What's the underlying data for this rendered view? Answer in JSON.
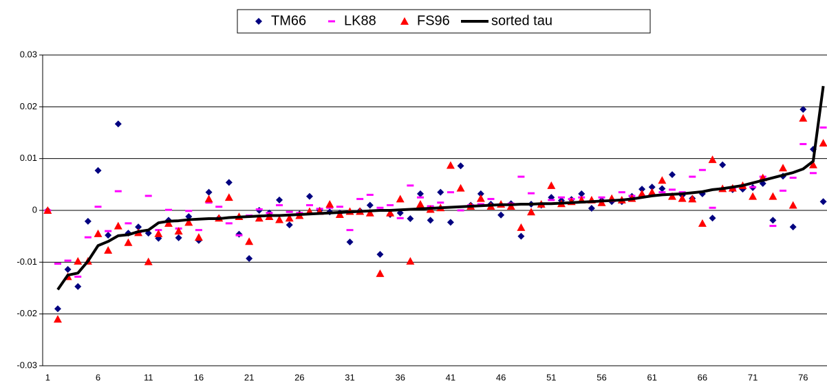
{
  "chart_data": {
    "type": "line",
    "categories": [
      "1",
      null,
      null,
      null,
      null,
      "6",
      null,
      null,
      null,
      null,
      "11",
      null,
      null,
      null,
      null,
      "16",
      null,
      null,
      null,
      null,
      "21",
      null,
      null,
      null,
      null,
      "26",
      null,
      null,
      null,
      null,
      "31",
      null,
      null,
      null,
      null,
      "36",
      null,
      null,
      null,
      null,
      "41",
      null,
      null,
      null,
      null,
      "46",
      null,
      null,
      null,
      null,
      "51",
      null,
      null,
      null,
      null,
      "56",
      null,
      null,
      null,
      null,
      "61",
      null,
      null,
      null,
      null,
      "66",
      null,
      null,
      null,
      null,
      "71",
      null,
      null,
      null,
      null,
      "76",
      null,
      null
    ],
    "ylim": [
      -0.03,
      0.03
    ],
    "yticks": [
      -0.03,
      -0.02,
      -0.01,
      0,
      0.01,
      0.02,
      0.03
    ],
    "grid": true,
    "legend": "top",
    "series": [
      {
        "name": "TM66",
        "color": "#000080",
        "marker": "diamond",
        "line": false,
        "values": [
          0,
          -0.019,
          -0.0114,
          -0.0147,
          -0.0021,
          0.0077,
          -0.0048,
          0.0167,
          -0.0044,
          -0.0032,
          -0.0044,
          -0.0054,
          -0.0019,
          -0.0053,
          -0.0012,
          -0.0058,
          0.0035,
          -0.0015,
          0.0054,
          -0.0046,
          -0.0093,
          0,
          -0.0005,
          0.002,
          -0.0028,
          -0.0007,
          0.0027,
          0,
          -0.0003,
          -0.0005,
          -0.0061,
          -0.0001,
          0.001,
          -0.0085,
          -0.0008,
          -0.0005,
          -0.0016,
          0.0032,
          -0.0019,
          0.0035,
          -0.0023,
          0.0086,
          0.001,
          0.0032,
          0.0012,
          -0.0009,
          0.0013,
          -0.005,
          0.0012,
          0.001,
          0.0025,
          0.0019,
          0.0021,
          0.0032,
          0.0004,
          0.0019,
          0.0017,
          0.0017,
          0.0027,
          0.0041,
          0.0045,
          0.0042,
          0.0069,
          0.0029,
          0.0023,
          0.0032,
          -0.0015,
          0.0088,
          0.004,
          0.0041,
          0.0044,
          0.0052,
          -0.0019,
          0.0066,
          -0.0032,
          0.0195,
          0.0118,
          0.0017
        ]
      },
      {
        "name": "LK88",
        "color": "#ff00ff",
        "marker": "dash",
        "line": false,
        "values": [
          0,
          -0.0103,
          -0.0097,
          -0.0128,
          -0.0052,
          0.0007,
          -0.004,
          0.0037,
          -0.0025,
          -0.0042,
          0.0028,
          -0.0038,
          0.0001,
          -0.0035,
          -0.0001,
          -0.0038,
          0.0015,
          0.0007,
          -0.0025,
          -0.0048,
          -0.001,
          0.0002,
          -0.0005,
          0.001,
          -0.0003,
          -0.0005,
          0.001,
          0.0003,
          0.0005,
          0.0007,
          -0.0038,
          0.0022,
          0.003,
          0.0005,
          0.001,
          -0.0015,
          0.0048,
          0.0025,
          0.0008,
          0.0015,
          0.0035,
          0,
          0.001,
          0.0012,
          0.0022,
          0.0008,
          0.0013,
          0.0065,
          0.0033,
          0.0013,
          0.002,
          0.0025,
          0.0022,
          0.0025,
          0.0017,
          0.0025,
          0.0018,
          0.0035,
          0.0028,
          0.0028,
          0.003,
          0.0035,
          0.004,
          0.0035,
          0.0065,
          0.0078,
          0.0005,
          0.0042,
          0.0042,
          0.0048,
          0.0045,
          0.0065,
          -0.003,
          0.0038,
          0.0063,
          0.0128,
          0.0072,
          0.016
        ]
      },
      {
        "name": "FS96",
        "color": "#ff0000",
        "marker": "triangle",
        "line": false,
        "values": [
          0,
          -0.021,
          -0.0128,
          -0.0098,
          -0.0098,
          -0.0045,
          -0.0077,
          -0.003,
          -0.0062,
          -0.0043,
          -0.0099,
          -0.0045,
          -0.0025,
          -0.004,
          -0.0023,
          -0.0052,
          0.0022,
          -0.0015,
          0.0025,
          -0.0012,
          -0.006,
          -0.0015,
          -0.0012,
          -0.0018,
          -0.0015,
          -0.001,
          -0.0002,
          -0.0002,
          0.0012,
          -0.0008,
          -0.0002,
          -0.0002,
          -0.0005,
          -0.0122,
          -0.0005,
          0.0022,
          -0.0098,
          0.0012,
          0.0002,
          0.0005,
          0.0087,
          0.0043,
          0.0008,
          0.0023,
          0.0008,
          0.0012,
          0.0008,
          -0.0033,
          -0.0003,
          0.0012,
          0.0048,
          0.0013,
          0.0017,
          0.002,
          0.002,
          0.0015,
          0.0023,
          0.002,
          0.0023,
          0.0032,
          0.0035,
          0.0058,
          0.0027,
          0.0023,
          0.0022,
          -0.0025,
          0.0098,
          0.0042,
          0.0043,
          0.0048,
          0.0027,
          0.0063,
          0.0027,
          0.0082,
          0.001,
          0.0178,
          0.0088,
          0.013
        ]
      },
      {
        "name": "sorted tau",
        "color": "#000000",
        "marker": "none",
        "line": true,
        "values": [
          null,
          -0.0153,
          -0.0125,
          -0.0121,
          -0.0098,
          -0.0068,
          -0.006,
          -0.0049,
          -0.0047,
          -0.0041,
          -0.0038,
          -0.0024,
          -0.0021,
          -0.002,
          -0.0018,
          -0.0017,
          -0.0016,
          -0.0016,
          -0.0014,
          -0.0013,
          -0.0012,
          -0.0011,
          -0.001,
          -0.001,
          -0.0009,
          -0.0008,
          -0.0007,
          -0.0006,
          -0.0005,
          -0.0004,
          -0.0003,
          -0.0002,
          -0.0001,
          0,
          0,
          0.0001,
          0.0002,
          0.0003,
          0.0004,
          0.0005,
          0.0006,
          0.0007,
          0.0008,
          0.0009,
          0.001,
          0.0011,
          0.0011,
          0.0012,
          0.0012,
          0.0013,
          0.0013,
          0.0014,
          0.0015,
          0.0016,
          0.0017,
          0.0018,
          0.0019,
          0.002,
          0.0022,
          0.0025,
          0.0028,
          0.003,
          0.0031,
          0.0032,
          0.0034,
          0.0036,
          0.004,
          0.0042,
          0.0045,
          0.0048,
          0.0053,
          0.0058,
          0.0063,
          0.0068,
          0.0073,
          0.008,
          0.0095,
          0.024
        ]
      }
    ]
  }
}
